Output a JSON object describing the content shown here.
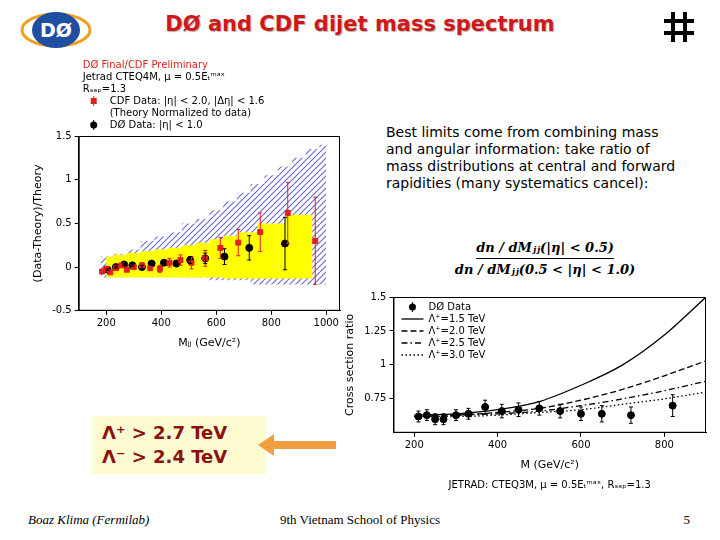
{
  "slide": {
    "title": "DØ and CDF dijet mass spectrum",
    "logo_text": "DØ",
    "text": "Best limits come from combining mass and angular information: take ratio of mass distributions at central and forward rapidities (many systematics cancel):",
    "formula": {
      "numerator": "dn / dMⱼⱼ(|η| < 0.5)",
      "denominator": "dn / dMⱼⱼ(0.5 < |η| < 1.0)"
    },
    "limits": [
      "Λ⁺ > 2.7 TeV",
      "Λ⁻ > 2.4 TeV"
    ],
    "footer": {
      "left": "Boaz Klima (Fermilab)",
      "center": "9th Vietnam School of Physics",
      "right": 5
    }
  },
  "chart_data": [
    {
      "type": "scatter",
      "title": "DØ Final/CDF Preliminary",
      "annotations": [
        "Jetrad CTEQ4M, μ = 0.5Eₜᵐᵃˣ",
        "Rₛₑₚ=1.3",
        "(Theory Normalized to data)"
      ],
      "x_label": "Mⱼⱼ (GeV/c²)",
      "y_label": "(Data-Theory)/Theory",
      "xlim": [
        100,
        1050
      ],
      "xticks": [
        200,
        400,
        600,
        800,
        1000
      ],
      "ylim": [
        -0.5,
        1.5
      ],
      "yticks": [
        -0.5,
        0,
        0.5,
        1,
        1.5
      ],
      "grid": false,
      "legend": "top",
      "series": [
        {
          "type": "hatched_band",
          "color": "#6b6bd6",
          "x": [
            180,
            250,
            300,
            350,
            400,
            450,
            500,
            550,
            600,
            650,
            700,
            750,
            800,
            850,
            900,
            950,
            1000
          ],
          "lower": [
            -0.12,
            -0.1,
            -0.1,
            -0.1,
            -0.1,
            -0.1,
            -0.12,
            -0.12,
            -0.15,
            -0.15,
            -0.15,
            -0.2,
            -0.2,
            -0.2,
            -0.2,
            -0.2,
            -0.2
          ],
          "upper": [
            0.12,
            0.15,
            0.2,
            0.3,
            0.35,
            0.4,
            0.5,
            0.55,
            0.65,
            0.75,
            0.85,
            0.95,
            1.05,
            1.15,
            1.25,
            1.35,
            1.4
          ]
        },
        {
          "type": "band",
          "color": "#ffff00",
          "x": [
            200,
            250,
            300,
            350,
            400,
            450,
            500,
            550,
            600,
            650,
            700,
            800,
            900,
            950
          ],
          "lower": [
            -0.12,
            -0.12,
            -0.12,
            -0.12,
            -0.12,
            -0.12,
            -0.12,
            -0.12,
            -0.12,
            -0.13,
            -0.13,
            -0.13,
            -0.13,
            -0.13
          ],
          "upper": [
            0.12,
            0.14,
            0.16,
            0.18,
            0.2,
            0.22,
            0.25,
            0.28,
            0.32,
            0.36,
            0.4,
            0.5,
            0.6,
            0.6
          ]
        },
        {
          "name": "CDF Data: |η| < 2.0, |Δη| < 1.6",
          "marker": "square",
          "color": "#e0201c",
          "x": [
            185,
            200,
            215,
            235,
            255,
            275,
            300,
            330,
            360,
            395,
            430,
            470,
            510,
            560,
            615,
            680,
            760,
            860,
            960
          ],
          "values": [
            -0.05,
            -0.02,
            -0.06,
            -0.01,
            0.02,
            -0.03,
            0.0,
            0.02,
            -0.01,
            -0.02,
            0.05,
            0.08,
            0.05,
            0.1,
            0.22,
            0.28,
            0.4,
            0.62,
            0.3
          ],
          "errors": [
            0.02,
            0.02,
            0.02,
            0.02,
            0.02,
            0.02,
            0.02,
            0.03,
            0.03,
            0.04,
            0.05,
            0.06,
            0.07,
            0.09,
            0.12,
            0.15,
            0.22,
            0.35,
            0.5
          ]
        },
        {
          "name": "DØ Data: |η| < 1.0",
          "marker": "circle",
          "color": "#000000",
          "x": [
            205,
            235,
            265,
            295,
            330,
            365,
            410,
            455,
            505,
            560,
            630,
            720,
            850
          ],
          "values": [
            -0.03,
            0.0,
            0.03,
            0.02,
            0.0,
            0.04,
            0.05,
            0.04,
            0.08,
            0.1,
            0.12,
            0.22,
            0.27
          ],
          "errors": [
            0.01,
            0.01,
            0.01,
            0.01,
            0.02,
            0.02,
            0.03,
            0.03,
            0.04,
            0.06,
            0.09,
            0.14,
            0.3
          ]
        }
      ]
    },
    {
      "type": "scatter",
      "x_label": "M (GeV/c²)",
      "y_label": "Cross section ratio",
      "caption": "JETRAD: CTEQ3M, μ = 0.5Eₜᵐᵃˣ, Rₛₑₚ=1.3",
      "xlim": [
        150,
        900
      ],
      "xticks": [
        200,
        400,
        600,
        800
      ],
      "ylim": [
        0.5,
        1.5
      ],
      "yticks": [
        0.75,
        1,
        1.25,
        1.5
      ],
      "grid": false,
      "legend": "top-left",
      "series": [
        {
          "name": "DØ Data",
          "marker": "circle",
          "color": "#000000",
          "x": [
            210,
            230,
            250,
            270,
            300,
            330,
            370,
            410,
            450,
            500,
            550,
            600,
            650,
            720,
            820
          ],
          "values": [
            0.62,
            0.63,
            0.6,
            0.6,
            0.63,
            0.64,
            0.69,
            0.66,
            0.67,
            0.68,
            0.66,
            0.64,
            0.64,
            0.63,
            0.7
          ],
          "errors": [
            0.04,
            0.04,
            0.04,
            0.04,
            0.04,
            0.04,
            0.05,
            0.05,
            0.05,
            0.05,
            0.05,
            0.05,
            0.06,
            0.06,
            0.08
          ]
        },
        {
          "name": "Λ⁺=1.5 TeV",
          "type": "line",
          "line_style": "solid",
          "color": "#000000",
          "x": [
            200,
            300,
            400,
            500,
            600,
            700,
            800,
            900
          ],
          "values": [
            0.63,
            0.64,
            0.67,
            0.73,
            0.85,
            1.0,
            1.22,
            1.5
          ]
        },
        {
          "name": "Λ⁺=2.0 TeV",
          "type": "line",
          "line_style": "dashed",
          "color": "#000000",
          "x": [
            200,
            300,
            400,
            500,
            600,
            700,
            800,
            900
          ],
          "values": [
            0.62,
            0.63,
            0.65,
            0.68,
            0.74,
            0.82,
            0.92,
            1.03
          ]
        },
        {
          "name": "Λ⁺=2.5 TeV",
          "type": "line",
          "line_style": "dashdot",
          "color": "#000000",
          "x": [
            200,
            300,
            400,
            500,
            600,
            700,
            800,
            900
          ],
          "values": [
            0.62,
            0.63,
            0.64,
            0.66,
            0.7,
            0.75,
            0.81,
            0.88
          ]
        },
        {
          "name": "Λ⁺=3.0 TeV",
          "type": "line",
          "line_style": "dotted",
          "color": "#000000",
          "x": [
            200,
            300,
            400,
            500,
            600,
            700,
            800,
            900
          ],
          "values": [
            0.62,
            0.62,
            0.63,
            0.65,
            0.67,
            0.71,
            0.75,
            0.8
          ]
        }
      ]
    }
  ]
}
